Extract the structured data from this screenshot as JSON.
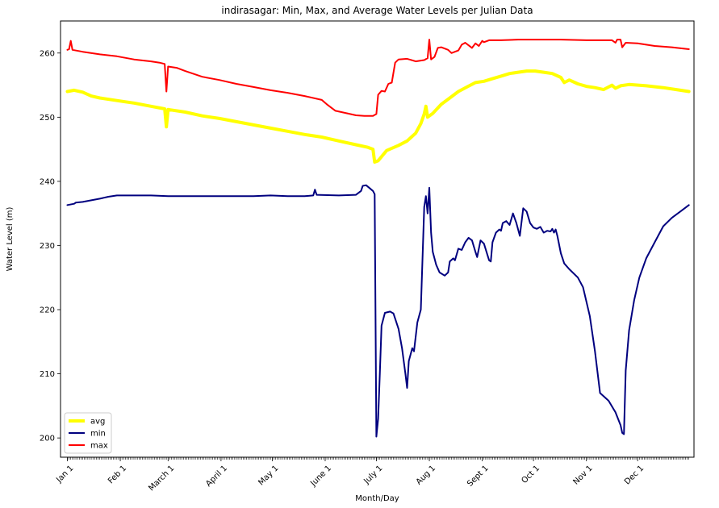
{
  "chart_data": {
    "type": "line",
    "title": "indirasagar: Min, Max, and Average Water Levels per Julian Data",
    "xlabel": "Month/Day",
    "ylabel": "Water Level (m)",
    "xlim": [
      -3,
      368
    ],
    "ylim": [
      197,
      265
    ],
    "grid": false,
    "legend_position": "lower-left",
    "x_ticks": [
      {
        "label": "Jan 1",
        "day": 1
      },
      {
        "label": "Feb 1",
        "day": 32
      },
      {
        "label": "March 1",
        "day": 60
      },
      {
        "label": "April 1",
        "day": 91
      },
      {
        "label": "May 1",
        "day": 121
      },
      {
        "label": "June 1",
        "day": 152
      },
      {
        "label": "July 1",
        "day": 182
      },
      {
        "label": "Aug 1",
        "day": 213
      },
      {
        "label": "Sept 1",
        "day": 244
      },
      {
        "label": "Oct 1",
        "day": 274
      },
      {
        "label": "Nov 1",
        "day": 305
      },
      {
        "label": "Dec 1",
        "day": 335
      }
    ],
    "y_ticks": [
      200,
      210,
      220,
      230,
      240,
      250,
      260
    ],
    "series": [
      {
        "name": "avg",
        "color": "#ffff00",
        "width": 4,
        "points": [
          [
            1,
            254.0
          ],
          [
            5,
            254.2
          ],
          [
            10,
            253.9
          ],
          [
            15,
            253.3
          ],
          [
            20,
            253.0
          ],
          [
            30,
            252.6
          ],
          [
            40,
            252.2
          ],
          [
            50,
            251.7
          ],
          [
            58,
            251.3
          ],
          [
            59,
            248.5
          ],
          [
            60,
            251.2
          ],
          [
            70,
            250.8
          ],
          [
            80,
            250.2
          ],
          [
            90,
            249.8
          ],
          [
            100,
            249.3
          ],
          [
            110,
            248.8
          ],
          [
            120,
            248.3
          ],
          [
            130,
            247.8
          ],
          [
            140,
            247.3
          ],
          [
            150,
            246.9
          ],
          [
            160,
            246.3
          ],
          [
            170,
            245.7
          ],
          [
            177,
            245.3
          ],
          [
            180,
            245.0
          ],
          [
            181,
            243.0
          ],
          [
            183,
            243.2
          ],
          [
            188,
            244.8
          ],
          [
            195,
            245.6
          ],
          [
            200,
            246.3
          ],
          [
            205,
            247.5
          ],
          [
            208,
            249.0
          ],
          [
            210,
            250.5
          ],
          [
            211,
            251.7
          ],
          [
            212,
            250.0
          ],
          [
            215,
            250.6
          ],
          [
            220,
            252.0
          ],
          [
            225,
            253.0
          ],
          [
            230,
            254.0
          ],
          [
            235,
            254.7
          ],
          [
            240,
            255.4
          ],
          [
            245,
            255.6
          ],
          [
            250,
            256.0
          ],
          [
            255,
            256.4
          ],
          [
            260,
            256.8
          ],
          [
            265,
            257.0
          ],
          [
            270,
            257.2
          ],
          [
            275,
            257.2
          ],
          [
            280,
            257.0
          ],
          [
            285,
            256.8
          ],
          [
            290,
            256.2
          ],
          [
            292,
            255.4
          ],
          [
            295,
            255.8
          ],
          [
            300,
            255.2
          ],
          [
            305,
            254.8
          ],
          [
            310,
            254.6
          ],
          [
            315,
            254.3
          ],
          [
            320,
            255.0
          ],
          [
            322,
            254.5
          ],
          [
            325,
            254.9
          ],
          [
            330,
            255.1
          ],
          [
            340,
            254.9
          ],
          [
            350,
            254.6
          ],
          [
            360,
            254.2
          ],
          [
            365,
            254.0
          ]
        ]
      },
      {
        "name": "min",
        "color": "#00007f",
        "width": 2,
        "points": [
          [
            1,
            236.3
          ],
          [
            5,
            236.5
          ],
          [
            6,
            236.7
          ],
          [
            10,
            236.8
          ],
          [
            20,
            237.3
          ],
          [
            25,
            237.6
          ],
          [
            30,
            237.8
          ],
          [
            40,
            237.8
          ],
          [
            50,
            237.8
          ],
          [
            60,
            237.7
          ],
          [
            70,
            237.7
          ],
          [
            80,
            237.7
          ],
          [
            90,
            237.7
          ],
          [
            100,
            237.7
          ],
          [
            110,
            237.7
          ],
          [
            120,
            237.8
          ],
          [
            130,
            237.7
          ],
          [
            140,
            237.7
          ],
          [
            145,
            237.8
          ],
          [
            146,
            238.7
          ],
          [
            147,
            237.9
          ],
          [
            160,
            237.8
          ],
          [
            170,
            237.9
          ],
          [
            173,
            238.5
          ],
          [
            174,
            239.3
          ],
          [
            176,
            239.4
          ],
          [
            180,
            238.5
          ],
          [
            181,
            238.0
          ],
          [
            182,
            200.2
          ],
          [
            183,
            203.0
          ],
          [
            184,
            210.0
          ],
          [
            185,
            217.5
          ],
          [
            187,
            219.5
          ],
          [
            190,
            219.7
          ],
          [
            192,
            219.4
          ],
          [
            195,
            217.0
          ],
          [
            197,
            214.0
          ],
          [
            199,
            210.0
          ],
          [
            200,
            207.8
          ],
          [
            201,
            212.0
          ],
          [
            203,
            214.0
          ],
          [
            204,
            213.5
          ],
          [
            206,
            218.0
          ],
          [
            208,
            220.0
          ],
          [
            209,
            228.0
          ],
          [
            210,
            236.0
          ],
          [
            211,
            237.7
          ],
          [
            212,
            235.0
          ],
          [
            213,
            239.0
          ],
          [
            214,
            232.0
          ],
          [
            215,
            229.0
          ],
          [
            217,
            227.0
          ],
          [
            219,
            225.8
          ],
          [
            222,
            225.3
          ],
          [
            224,
            225.8
          ],
          [
            225,
            227.5
          ],
          [
            227,
            228.0
          ],
          [
            228,
            227.7
          ],
          [
            230,
            229.5
          ],
          [
            232,
            229.3
          ],
          [
            234,
            230.5
          ],
          [
            236,
            231.2
          ],
          [
            238,
            230.8
          ],
          [
            240,
            229.0
          ],
          [
            241,
            228.2
          ],
          [
            243,
            230.8
          ],
          [
            245,
            230.3
          ],
          [
            248,
            227.7
          ],
          [
            249,
            227.5
          ],
          [
            250,
            230.5
          ],
          [
            252,
            232.0
          ],
          [
            254,
            232.5
          ],
          [
            255,
            232.3
          ],
          [
            256,
            233.5
          ],
          [
            258,
            233.8
          ],
          [
            260,
            233.2
          ],
          [
            262,
            235.0
          ],
          [
            264,
            233.5
          ],
          [
            266,
            231.5
          ],
          [
            268,
            235.8
          ],
          [
            270,
            235.3
          ],
          [
            272,
            233.5
          ],
          [
            274,
            232.8
          ],
          [
            276,
            232.6
          ],
          [
            278,
            232.9
          ],
          [
            280,
            232.0
          ],
          [
            282,
            232.3
          ],
          [
            284,
            232.2
          ],
          [
            285,
            232.6
          ],
          [
            286,
            232.0
          ],
          [
            287,
            232.5
          ],
          [
            288,
            231.5
          ],
          [
            290,
            228.8
          ],
          [
            292,
            227.2
          ],
          [
            295,
            226.3
          ],
          [
            300,
            225.0
          ],
          [
            303,
            223.5
          ],
          [
            307,
            219.0
          ],
          [
            310,
            213.5
          ],
          [
            313,
            207.0
          ],
          [
            318,
            205.8
          ],
          [
            322,
            204.0
          ],
          [
            325,
            202.0
          ],
          [
            326,
            200.8
          ],
          [
            327,
            200.6
          ],
          [
            328,
            210.5
          ],
          [
            330,
            216.8
          ],
          [
            333,
            221.5
          ],
          [
            336,
            225.0
          ],
          [
            340,
            228.0
          ],
          [
            345,
            230.5
          ],
          [
            350,
            233.0
          ],
          [
            355,
            234.3
          ],
          [
            360,
            235.3
          ],
          [
            365,
            236.3
          ]
        ]
      },
      {
        "name": "max",
        "color": "#ff0000",
        "width": 2,
        "points": [
          [
            1,
            260.5
          ],
          [
            2,
            260.6
          ],
          [
            3,
            261.9
          ],
          [
            4,
            260.5
          ],
          [
            10,
            260.2
          ],
          [
            20,
            259.8
          ],
          [
            30,
            259.5
          ],
          [
            40,
            259.0
          ],
          [
            50,
            258.7
          ],
          [
            55,
            258.5
          ],
          [
            58,
            258.3
          ],
          [
            59,
            254.0
          ],
          [
            60,
            257.9
          ],
          [
            65,
            257.7
          ],
          [
            70,
            257.2
          ],
          [
            80,
            256.3
          ],
          [
            90,
            255.8
          ],
          [
            100,
            255.2
          ],
          [
            110,
            254.7
          ],
          [
            120,
            254.2
          ],
          [
            130,
            253.8
          ],
          [
            140,
            253.3
          ],
          [
            150,
            252.7
          ],
          [
            153,
            252.0
          ],
          [
            158,
            251.0
          ],
          [
            165,
            250.6
          ],
          [
            170,
            250.3
          ],
          [
            175,
            250.2
          ],
          [
            180,
            250.2
          ],
          [
            182,
            250.5
          ],
          [
            183,
            253.5
          ],
          [
            185,
            254.1
          ],
          [
            187,
            254.0
          ],
          [
            189,
            255.2
          ],
          [
            191,
            255.4
          ],
          [
            193,
            258.5
          ],
          [
            195,
            259.0
          ],
          [
            200,
            259.1
          ],
          [
            205,
            258.7
          ],
          [
            210,
            258.9
          ],
          [
            212,
            259.2
          ],
          [
            213,
            262.1
          ],
          [
            214,
            259.0
          ],
          [
            216,
            259.4
          ],
          [
            218,
            260.8
          ],
          [
            220,
            260.9
          ],
          [
            224,
            260.5
          ],
          [
            226,
            260.0
          ],
          [
            230,
            260.4
          ],
          [
            232,
            261.3
          ],
          [
            234,
            261.6
          ],
          [
            236,
            261.2
          ],
          [
            238,
            260.8
          ],
          [
            240,
            261.5
          ],
          [
            242,
            261.1
          ],
          [
            244,
            261.9
          ],
          [
            245,
            261.7
          ],
          [
            248,
            262.0
          ],
          [
            255,
            262.0
          ],
          [
            265,
            262.1
          ],
          [
            275,
            262.1
          ],
          [
            290,
            262.1
          ],
          [
            305,
            262.0
          ],
          [
            320,
            262.0
          ],
          [
            322,
            261.6
          ],
          [
            323,
            262.1
          ],
          [
            325,
            262.1
          ],
          [
            326,
            260.9
          ],
          [
            328,
            261.6
          ],
          [
            335,
            261.5
          ],
          [
            345,
            261.1
          ],
          [
            355,
            260.9
          ],
          [
            365,
            260.6
          ]
        ]
      }
    ]
  }
}
